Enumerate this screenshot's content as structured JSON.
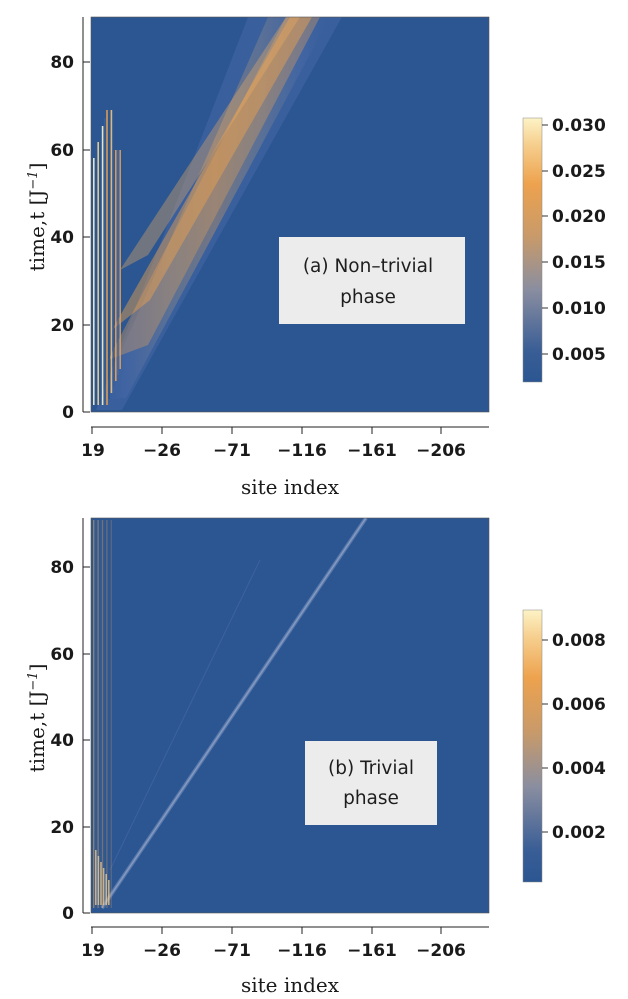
{
  "chart_data": [
    {
      "type": "heatmap",
      "panel": "a",
      "annotation_lines": [
        "(a) Non–trivial",
        "phase"
      ],
      "xlabel": "site  index",
      "ylabel": "time,t  [J",
      "ylabel_superscript": "−1",
      "ylabel_close": "]",
      "x_ticks": [
        "19",
        "−26",
        "−71",
        "−116",
        "−161",
        "−206"
      ],
      "y_ticks": [
        "0",
        "20",
        "40",
        "60",
        "80"
      ],
      "xlim": [
        19,
        -240
      ],
      "ylim": [
        0,
        90
      ],
      "colorbar_ticks": [
        "0.030",
        "0.025",
        "0.020",
        "0.015",
        "0.010",
        "0.005"
      ],
      "colorbar_range": [
        0.002,
        0.03
      ],
      "features": [
        {
          "kind": "edge-mode",
          "site_range": [
            19,
            0
          ],
          "t_range": [
            2,
            70
          ],
          "peak": 0.03
        },
        {
          "kind": "light-cone",
          "from": {
            "site": 19,
            "t": 0
          },
          "to": {
            "site": -130,
            "t": 90
          },
          "peak": 0.022
        }
      ],
      "colors": {
        "low": "#2b5691",
        "mid": "#8a8ea0",
        "high": "#e8a050",
        "top": "#fdf3c6"
      }
    },
    {
      "type": "heatmap",
      "panel": "b",
      "annotation_lines": [
        "(b) Trivial",
        "phase"
      ],
      "xlabel": "site  index",
      "ylabel": "time,t  [J",
      "ylabel_superscript": "−1",
      "ylabel_close": "]",
      "x_ticks": [
        "19",
        "−26",
        "−71",
        "−116",
        "−161",
        "−206"
      ],
      "y_ticks": [
        "0",
        "20",
        "40",
        "60",
        "80"
      ],
      "xlim": [
        19,
        -240
      ],
      "ylim": [
        0,
        90
      ],
      "colorbar_ticks": [
        "0.008",
        "0.006",
        "0.004",
        "0.002"
      ],
      "colorbar_range": [
        0.0003,
        0.009
      ],
      "features": [
        {
          "kind": "boundary-oscillation",
          "site_range": [
            19,
            3
          ],
          "t_range": [
            2,
            90
          ],
          "peak": 0.009
        },
        {
          "kind": "light-cone",
          "from": {
            "site": 19,
            "t": 0
          },
          "to": {
            "site": -161,
            "t": 90
          },
          "peak": 0.002
        }
      ],
      "colors": {
        "low": "#2b5691",
        "mid": "#8a8ea0",
        "high": "#e8a050",
        "top": "#fdf3c6"
      }
    }
  ]
}
